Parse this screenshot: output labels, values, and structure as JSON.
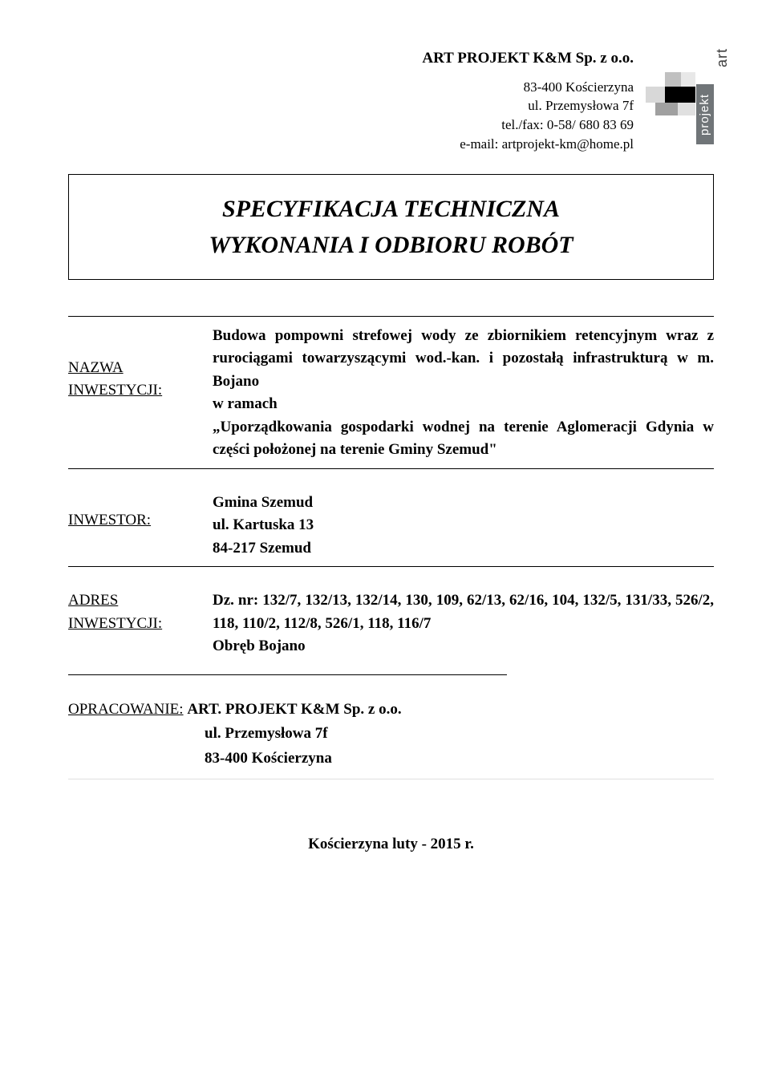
{
  "header": {
    "company_name": "ART PROJEKT K&M Sp. z o.o.",
    "address_city": "83-400 Kościerzyna",
    "address_street": "ul. Przemysłowa 7f",
    "telfax": "tel./fax: 0-58/ 680 83 69",
    "email": "e-mail: artprojekt-km@home.pl",
    "logo_text_top": "art",
    "logo_text_side": "projekt"
  },
  "title": {
    "line1": "SPECYFIKACJA TECHNICZNA",
    "line2": "WYKONANIA I ODBIORU ROBÓT"
  },
  "nazwa": {
    "label_line1": "NAZWA",
    "label_line2": "INWESTYCJI:",
    "value": "Budowa pompowni strefowej wody ze zbiornikiem retencyjnym wraz z rurociągami towarzyszącymi wod.-kan. i pozostałą infrastrukturą w m. Bojano",
    "value_line2": "w ramach",
    "value_line3": "„Uporządkowania gospodarki wodnej na terenie Aglomeracji Gdynia w części położonej na terenie Gminy Szemud\""
  },
  "inwestor": {
    "label": "INWESTOR:",
    "line1": "Gmina Szemud",
    "line2": "ul. Kartuska 13",
    "line3": "84-217 Szemud"
  },
  "adres": {
    "label_line1": "ADRES",
    "label_line2": "INWESTYCJI:",
    "value_line1": "Dz. nr: 132/7, 132/13, 132/14, 130, 109, 62/13, 62/16, 104, 132/5, 131/33, 526/2, 118, 110/2, 112/8, 526/1, 118, 116/7",
    "value_line2": "Obręb Bojano"
  },
  "opracowanie": {
    "label": "OPRACOWANIE:",
    "line1": "ART. PROJEKT K&M Sp. z o.o.",
    "line2": "ul. Przemysłowa 7f",
    "line3": "83-400 Kościerzyna"
  },
  "footer": {
    "text": "Kościerzyna luty - 2015 r."
  },
  "colors": {
    "text": "#000000",
    "background": "#ffffff",
    "logo_side_bg": "#707578",
    "border": "#000000"
  }
}
